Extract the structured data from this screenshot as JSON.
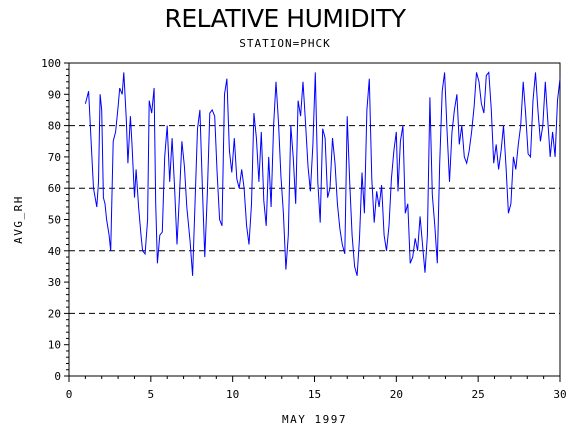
{
  "chart_data": {
    "type": "line",
    "title": "RELATIVE HUMIDITY",
    "subtitle": "STATION=PHCK",
    "xlabel": "MAY 1997",
    "ylabel": "AVG_RH",
    "xlim": [
      0,
      30
    ],
    "ylim": [
      0,
      100
    ],
    "x_ticks": [
      0,
      5,
      10,
      15,
      20,
      25,
      30
    ],
    "y_ticks": [
      0,
      10,
      20,
      30,
      40,
      50,
      60,
      70,
      80,
      90,
      100
    ],
    "gridlines_y": [
      0,
      20,
      40,
      60,
      80,
      100
    ],
    "grid": "dashed horizontal",
    "line_color": "#0000ff",
    "series": [
      {
        "values": [
          [
            1.0,
            87
          ],
          [
            1.2,
            91
          ],
          [
            1.35,
            75
          ],
          [
            1.5,
            60
          ],
          [
            1.7,
            54
          ],
          [
            1.8,
            62
          ],
          [
            1.9,
            90
          ],
          [
            2.0,
            85
          ],
          [
            2.1,
            57
          ],
          [
            2.2,
            55
          ],
          [
            2.3,
            50
          ],
          [
            2.45,
            45
          ],
          [
            2.55,
            40
          ],
          [
            2.7,
            75
          ],
          [
            2.85,
            78
          ],
          [
            3.0,
            86
          ],
          [
            3.1,
            92
          ],
          [
            3.25,
            90
          ],
          [
            3.35,
            97
          ],
          [
            3.5,
            82
          ],
          [
            3.6,
            68
          ],
          [
            3.75,
            83
          ],
          [
            3.85,
            74
          ],
          [
            4.0,
            57
          ],
          [
            4.1,
            66
          ],
          [
            4.25,
            54
          ],
          [
            4.4,
            45
          ],
          [
            4.5,
            40
          ],
          [
            4.65,
            39
          ],
          [
            4.8,
            50
          ],
          [
            4.9,
            88
          ],
          [
            5.05,
            84
          ],
          [
            5.2,
            92
          ],
          [
            5.3,
            55
          ],
          [
            5.4,
            36
          ],
          [
            5.55,
            45
          ],
          [
            5.7,
            46
          ],
          [
            5.85,
            70
          ],
          [
            6.0,
            80
          ],
          [
            6.15,
            62
          ],
          [
            6.3,
            76
          ],
          [
            6.45,
            60
          ],
          [
            6.6,
            42
          ],
          [
            6.75,
            58
          ],
          [
            6.9,
            75
          ],
          [
            7.05,
            67
          ],
          [
            7.2,
            54
          ],
          [
            7.4,
            43
          ],
          [
            7.55,
            32
          ],
          [
            7.7,
            55
          ],
          [
            7.85,
            79
          ],
          [
            8.0,
            85
          ],
          [
            8.15,
            60
          ],
          [
            8.3,
            38
          ],
          [
            8.45,
            58
          ],
          [
            8.6,
            84
          ],
          [
            8.75,
            85
          ],
          [
            8.9,
            83
          ],
          [
            9.05,
            65
          ],
          [
            9.2,
            50
          ],
          [
            9.35,
            48
          ],
          [
            9.5,
            90
          ],
          [
            9.65,
            95
          ],
          [
            9.8,
            72
          ],
          [
            9.95,
            65
          ],
          [
            10.1,
            76
          ],
          [
            10.25,
            63
          ],
          [
            10.4,
            60
          ],
          [
            10.55,
            66
          ],
          [
            10.7,
            60
          ],
          [
            10.85,
            48
          ],
          [
            11.0,
            42
          ],
          [
            11.15,
            55
          ],
          [
            11.3,
            84
          ],
          [
            11.45,
            76
          ],
          [
            11.6,
            62
          ],
          [
            11.75,
            78
          ],
          [
            11.9,
            56
          ],
          [
            12.05,
            48
          ],
          [
            12.2,
            70
          ],
          [
            12.35,
            54
          ],
          [
            12.5,
            80
          ],
          [
            12.65,
            94
          ],
          [
            12.8,
            81
          ],
          [
            12.95,
            64
          ],
          [
            13.1,
            52
          ],
          [
            13.25,
            34
          ],
          [
            13.4,
            45
          ],
          [
            13.55,
            80
          ],
          [
            13.7,
            70
          ],
          [
            13.85,
            55
          ],
          [
            14.0,
            88
          ],
          [
            14.15,
            83
          ],
          [
            14.3,
            94
          ],
          [
            14.45,
            81
          ],
          [
            14.6,
            67
          ],
          [
            14.75,
            59
          ],
          [
            14.9,
            74
          ],
          [
            15.05,
            97
          ],
          [
            15.2,
            62
          ],
          [
            15.35,
            49
          ],
          [
            15.5,
            79
          ],
          [
            15.65,
            76
          ],
          [
            15.8,
            57
          ],
          [
            15.95,
            60
          ],
          [
            16.1,
            76
          ],
          [
            16.25,
            68
          ],
          [
            16.4,
            55
          ],
          [
            16.55,
            47
          ],
          [
            16.7,
            42
          ],
          [
            16.85,
            39
          ],
          [
            17.0,
            83
          ],
          [
            17.15,
            62
          ],
          [
            17.3,
            45
          ],
          [
            17.45,
            35
          ],
          [
            17.6,
            32
          ],
          [
            17.75,
            44
          ],
          [
            17.9,
            65
          ],
          [
            18.05,
            52
          ],
          [
            18.2,
            85
          ],
          [
            18.35,
            95
          ],
          [
            18.5,
            63
          ],
          [
            18.65,
            49
          ],
          [
            18.8,
            59
          ],
          [
            18.95,
            54
          ],
          [
            19.1,
            61
          ],
          [
            19.25,
            45
          ],
          [
            19.4,
            40
          ],
          [
            19.55,
            48
          ],
          [
            19.7,
            63
          ],
          [
            19.85,
            72
          ],
          [
            20.0,
            78
          ],
          [
            20.1,
            59
          ],
          [
            20.25,
            75
          ],
          [
            20.4,
            80
          ],
          [
            20.55,
            52
          ],
          [
            20.7,
            55
          ],
          [
            20.85,
            36
          ],
          [
            21.0,
            38
          ],
          [
            21.15,
            44
          ],
          [
            21.3,
            40
          ],
          [
            21.45,
            51
          ],
          [
            21.6,
            42
          ],
          [
            21.75,
            33
          ],
          [
            21.9,
            45
          ],
          [
            22.05,
            89
          ],
          [
            22.2,
            58
          ],
          [
            22.35,
            48
          ],
          [
            22.5,
            36
          ],
          [
            22.65,
            68
          ],
          [
            22.8,
            91
          ],
          [
            22.95,
            97
          ],
          [
            23.1,
            78
          ],
          [
            23.25,
            62
          ],
          [
            23.4,
            78
          ],
          [
            23.55,
            85
          ],
          [
            23.7,
            90
          ],
          [
            23.85,
            74
          ],
          [
            24.0,
            80
          ],
          [
            24.15,
            70
          ],
          [
            24.3,
            68
          ],
          [
            24.45,
            72
          ],
          [
            24.6,
            78
          ],
          [
            24.75,
            86
          ],
          [
            24.9,
            97
          ],
          [
            25.05,
            94
          ],
          [
            25.2,
            87
          ],
          [
            25.35,
            84
          ],
          [
            25.5,
            96
          ],
          [
            25.65,
            97
          ],
          [
            25.8,
            85
          ],
          [
            25.95,
            68
          ],
          [
            26.1,
            74
          ],
          [
            26.25,
            66
          ],
          [
            26.4,
            72
          ],
          [
            26.55,
            80
          ],
          [
            26.7,
            67
          ],
          [
            26.85,
            52
          ],
          [
            27.0,
            55
          ],
          [
            27.15,
            70
          ],
          [
            27.3,
            66
          ],
          [
            27.45,
            74
          ],
          [
            27.6,
            80
          ],
          [
            27.75,
            94
          ],
          [
            27.9,
            84
          ],
          [
            28.05,
            71
          ],
          [
            28.2,
            70
          ],
          [
            28.35,
            88
          ],
          [
            28.5,
            97
          ],
          [
            28.65,
            85
          ],
          [
            28.8,
            75
          ],
          [
            28.95,
            80
          ],
          [
            29.1,
            94
          ],
          [
            29.25,
            82
          ],
          [
            29.4,
            70
          ],
          [
            29.55,
            78
          ],
          [
            29.7,
            70
          ],
          [
            29.85,
            88
          ],
          [
            30.0,
            95
          ]
        ]
      }
    ]
  }
}
